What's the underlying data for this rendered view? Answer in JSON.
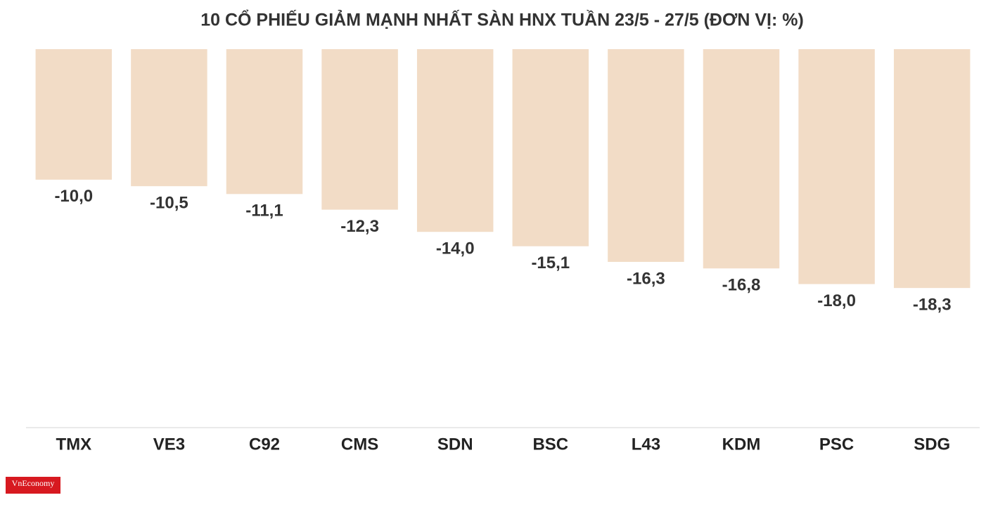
{
  "chart_data": {
    "type": "bar",
    "title": "10 CỔ PHIẾU GIẢM MẠNH NHẤT SÀN HNX TUẦN 23/5 - 27/5 (ĐƠN VỊ: %)",
    "categories": [
      "TMX",
      "VE3",
      "C92",
      "CMS",
      "SDN",
      "BSC",
      "L43",
      "KDM",
      "PSC",
      "SDG"
    ],
    "values": [
      -10.0,
      -10.5,
      -11.1,
      -12.3,
      -14.0,
      -15.1,
      -16.3,
      -16.8,
      -18.0,
      -18.3
    ],
    "value_labels": [
      "-10,0",
      "-10,5",
      "-11,1",
      "-12,3",
      "-14,0",
      "-15,1",
      "-16,3",
      "-16,8",
      "-18,0",
      "-18,3"
    ],
    "color": "#f2dcc6",
    "ylim": [
      -29,
      0
    ],
    "source": "VnEconomy"
  }
}
